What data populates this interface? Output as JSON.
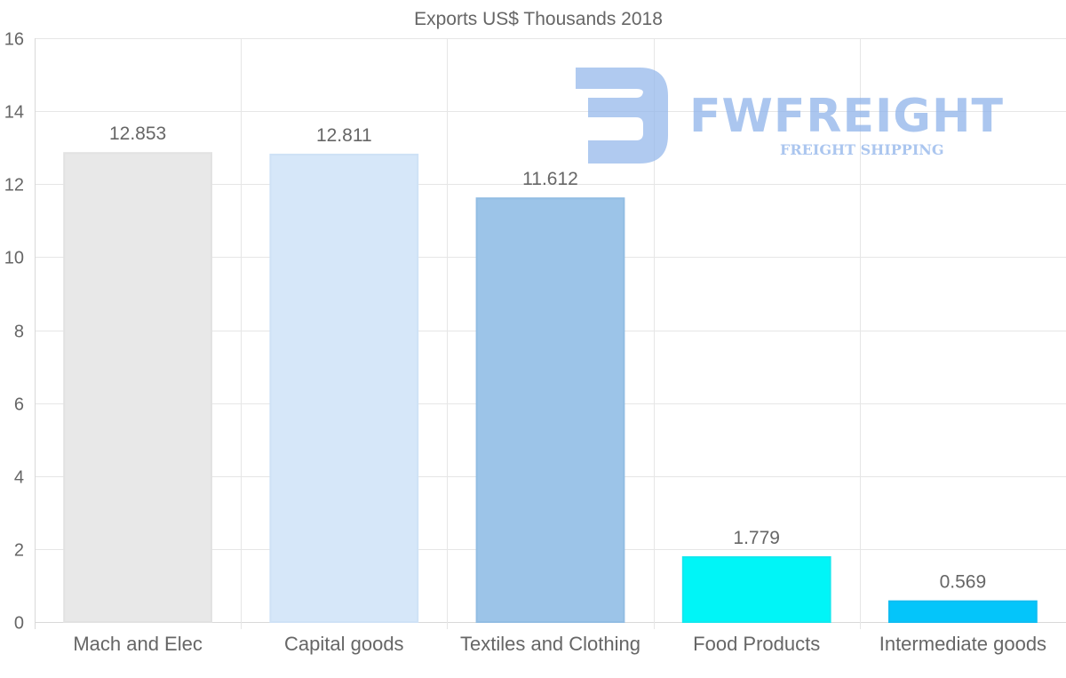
{
  "chart_data": {
    "type": "bar",
    "title": "Exports US$ Thousands 2018",
    "categories": [
      "Mach and Elec",
      "Capital goods",
      "Textiles and Clothing",
      "Food Products",
      "Intermediate goods"
    ],
    "values": [
      12.853,
      12.811,
      11.612,
      1.779,
      0.569
    ],
    "value_labels": [
      "12.853",
      "12.811",
      "11.612",
      "1.779",
      "0.569"
    ],
    "bar_colors": [
      "#e8e8e8",
      "#d6e7f9",
      "#9cc4e8",
      "#00f5f7",
      "#04c5fa"
    ],
    "bar_border_colors": [
      "#e2e2e2",
      "#cfe2f6",
      "#92bde3",
      "#14e8ee",
      "#10bdf2"
    ],
    "ylim": [
      0,
      16
    ],
    "yticks": [
      0,
      2,
      4,
      6,
      8,
      10,
      12,
      14,
      16
    ],
    "xlabel": "",
    "ylabel": "",
    "grid": true,
    "legend": "none"
  },
  "watermark": {
    "brand": "FWFREIGHT",
    "tagline": "FREIGHT SHIPPING",
    "color": "#8fb3ea"
  }
}
